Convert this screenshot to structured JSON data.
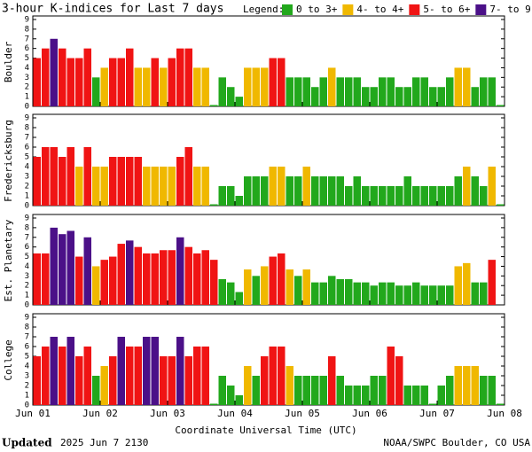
{
  "title": "3-hour K-indices for Last 7 days",
  "legend": {
    "title": "Legend:",
    "items": [
      {
        "label": "0 to 3+",
        "color": "#22a81c",
        "from": 0
      },
      {
        "label": "4- to 4+",
        "color": "#f0b800",
        "from": 3.67
      },
      {
        "label": "5- to 6+",
        "color": "#f01414",
        "from": 4.67
      },
      {
        "label": "7- to 9",
        "color": "#4b1088",
        "from": 6.67
      }
    ]
  },
  "x_label": "Coordinate Universal Time (UTC)",
  "xticks": [
    "Jun 01",
    "Jun 02",
    "Jun 03",
    "Jun 04",
    "Jun 05",
    "Jun 06",
    "Jun 07",
    "Jun 08"
  ],
  "footer": {
    "updated": "Updated",
    "time": "2025 Jun  7 2130",
    "source": "NOAA/SWPC Boulder, CO USA"
  },
  "chart_data": [
    {
      "type": "bar",
      "ylabel": "Boulder",
      "ylim": [
        0,
        9
      ],
      "yticks": [
        0,
        1,
        2,
        3,
        4,
        5,
        6,
        7,
        8,
        9
      ],
      "values": [
        5,
        6,
        7,
        6,
        5,
        5,
        6,
        3,
        4,
        5,
        5,
        6,
        4,
        4,
        5,
        4,
        5,
        6,
        6,
        4,
        4,
        0,
        3,
        2,
        1,
        4,
        4,
        4,
        5,
        5,
        3,
        3,
        3,
        2,
        3,
        4,
        3,
        3,
        3,
        2,
        2,
        3,
        3,
        2,
        2,
        3,
        3,
        2,
        2,
        3,
        4,
        4,
        2,
        3,
        3,
        0
      ]
    },
    {
      "type": "bar",
      "ylabel": "Fredericksburg",
      "ylim": [
        0,
        9
      ],
      "yticks": [
        0,
        1,
        2,
        3,
        4,
        5,
        6,
        7,
        8,
        9
      ],
      "values": [
        5,
        6,
        6,
        5,
        6,
        4,
        6,
        4,
        4,
        5,
        5,
        5,
        5,
        4,
        4,
        4,
        4,
        5,
        6,
        4,
        4,
        0,
        2,
        2,
        1,
        3,
        3,
        3,
        4,
        4,
        3,
        3,
        4,
        3,
        3,
        3,
        3,
        2,
        3,
        2,
        2,
        2,
        2,
        2,
        3,
        2,
        2,
        2,
        2,
        2,
        3,
        4,
        3,
        2,
        4,
        0
      ]
    },
    {
      "type": "bar",
      "ylabel": "Est. Planetary",
      "ylim": [
        0,
        9
      ],
      "yticks": [
        0,
        1,
        2,
        3,
        4,
        5,
        6,
        7,
        8,
        9
      ],
      "values": [
        5.33,
        5.33,
        8,
        7.33,
        7.67,
        5,
        7,
        4,
        4.67,
        5,
        6.33,
        6.67,
        6,
        5.33,
        5.33,
        5.67,
        5.67,
        7,
        6,
        5.33,
        5.67,
        4.67,
        2.67,
        2.33,
        1.33,
        3.67,
        3,
        4,
        5,
        5.33,
        3.67,
        3,
        3.67,
        2.33,
        2.33,
        3,
        2.67,
        2.67,
        2.33,
        2.33,
        2,
        2.33,
        2.33,
        2,
        2,
        2.33,
        2,
        2,
        2,
        2,
        4,
        4.33,
        2.33,
        2.33,
        4.67,
        null
      ]
    },
    {
      "type": "bar",
      "ylabel": "College",
      "ylim": [
        0,
        9
      ],
      "yticks": [
        0,
        1,
        2,
        3,
        4,
        5,
        6,
        7,
        8,
        9
      ],
      "values": [
        5,
        6,
        7,
        6,
        7,
        5,
        6,
        3,
        4,
        5,
        7,
        6,
        6,
        7,
        7,
        5,
        5,
        7,
        5,
        6,
        6,
        0,
        3,
        2,
        1,
        4,
        3,
        5,
        6,
        6,
        4,
        3,
        3,
        3,
        3,
        5,
        3,
        2,
        2,
        2,
        3,
        3,
        6,
        5,
        2,
        2,
        2,
        0,
        2,
        3,
        4,
        4,
        4,
        3,
        3,
        0
      ]
    }
  ]
}
